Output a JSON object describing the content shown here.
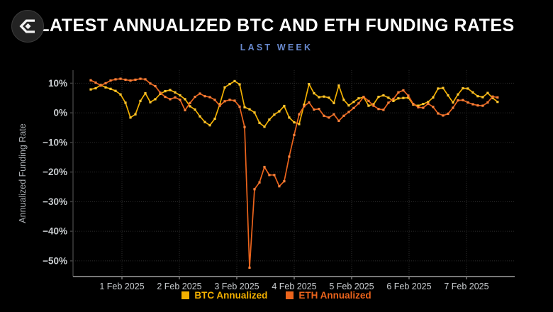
{
  "header": {
    "title": "LATEST ANNUALIZED BTC AND ETH FUNDING RATES",
    "subtitle": "LAST WEEK",
    "logo": "velo-sigma-logo"
  },
  "colors": {
    "background": "#000000",
    "title": "#ffffff",
    "subtitle": "#6889ce",
    "tick_text": "#c9cdd0",
    "axis_title_text": "#a9adb1",
    "grid": "#2c2c2c",
    "y_axis_line": "#3d3d3d",
    "x_axis_line": "#777777",
    "btc": "#f3b000",
    "btc_marker": "#ffc733",
    "eth": "#ec641c",
    "eth_marker": "#f8813b"
  },
  "chart_data": {
    "type": "line",
    "title": "LATEST ANNUALIZED BTC AND ETH FUNDING RATES",
    "subtitle": "LAST WEEK",
    "xlabel": "",
    "ylabel": "Annualized Funding Rate",
    "y_unit": "%",
    "x_unit": "days, 0 = 1 Feb 2025 (points every ~2 hours)",
    "x_start": -0.543,
    "x_step": 0.0864,
    "xlim": [
      -0.852,
      6.84
    ],
    "ylim": [
      -55.3,
      14.4
    ],
    "grid": true,
    "grid_style": "dotted",
    "marker": "square",
    "legend_position": "bottom",
    "x_ticks": [
      {
        "value": 0,
        "label": "1 Feb 2025"
      },
      {
        "value": 1,
        "label": "2 Feb 2025"
      },
      {
        "value": 2,
        "label": "3 Feb 2025"
      },
      {
        "value": 3,
        "label": "4 Feb 2025"
      },
      {
        "value": 4,
        "label": "5 Feb 2025"
      },
      {
        "value": 5,
        "label": "6 Feb 2025"
      },
      {
        "value": 6,
        "label": "7 Feb 2025"
      }
    ],
    "y_ticks": [
      {
        "value": 10,
        "label": "10%"
      },
      {
        "value": 0,
        "label": "0%"
      },
      {
        "value": -10,
        "label": "−10%"
      },
      {
        "value": -20,
        "label": "−20%"
      },
      {
        "value": -30,
        "label": "−30%"
      },
      {
        "value": -40,
        "label": "−40%"
      },
      {
        "value": -50,
        "label": "−50%"
      }
    ],
    "series": [
      {
        "name": "BTC Annualized",
        "color": "#f3b000",
        "marker_color": "#ffc733",
        "values": [
          7.9,
          8.3,
          9.4,
          8.6,
          8.1,
          7.4,
          6.2,
          3.4,
          -1.6,
          -0.5,
          4.0,
          6.6,
          3.6,
          4.6,
          6.4,
          7.3,
          7.7,
          6.9,
          5.9,
          4.6,
          2.2,
          1.1,
          -1.2,
          -3.1,
          -4.2,
          -2.0,
          2.9,
          8.6,
          9.7,
          10.7,
          9.6,
          1.9,
          1.2,
          0.1,
          -3.4,
          -4.7,
          -2.3,
          -0.6,
          0.5,
          2.3,
          -1.6,
          -3.2,
          -3.8,
          2.7,
          9.7,
          6.6,
          5.3,
          5.5,
          5.1,
          3.3,
          9.2,
          4.4,
          2.5,
          3.7,
          4.9,
          5.3,
          2.4,
          2.9,
          5.4,
          5.9,
          5.1,
          4.0,
          4.9,
          5.0,
          5.1,
          2.8,
          2.4,
          3.0,
          3.7,
          5.2,
          8.2,
          8.4,
          5.9,
          3.5,
          6.2,
          8.3,
          8.2,
          6.9,
          5.6,
          5.3,
          6.7,
          5.0,
          3.7
        ]
      },
      {
        "name": "ETH Annualized",
        "color": "#ec641c",
        "marker_color": "#f8813b",
        "values": [
          11.0,
          10.2,
          9.2,
          10.0,
          10.9,
          11.3,
          11.5,
          11.2,
          10.9,
          11.2,
          11.5,
          11.3,
          9.9,
          9.0,
          6.8,
          5.4,
          4.6,
          5.2,
          4.4,
          0.9,
          3.3,
          5.4,
          6.5,
          5.6,
          5.3,
          4.4,
          2.4,
          3.9,
          4.4,
          4.1,
          2.1,
          -4.8,
          -52.3,
          -25.8,
          -23.5,
          -18.3,
          -21.0,
          -21.0,
          -24.8,
          -23.1,
          -14.8,
          -7.5,
          -0.5,
          2.2,
          3.5,
          1.1,
          1.3,
          -1.0,
          -1.6,
          -0.5,
          -2.7,
          -1.0,
          0.3,
          1.6,
          3.2,
          5.4,
          4.0,
          2.4,
          1.3,
          1.0,
          3.4,
          4.7,
          6.9,
          7.6,
          5.8,
          3.0,
          1.9,
          1.7,
          3.1,
          2.0,
          -0.2,
          -0.9,
          -0.3,
          1.7,
          4.2,
          4.3,
          3.5,
          2.9,
          2.5,
          2.4,
          3.5,
          5.5,
          5.2
        ]
      }
    ]
  },
  "legend": {
    "items": [
      {
        "label": "BTC Annualized",
        "color": "#f3b000"
      },
      {
        "label": "ETH Annualized",
        "color": "#ec641c"
      }
    ]
  }
}
